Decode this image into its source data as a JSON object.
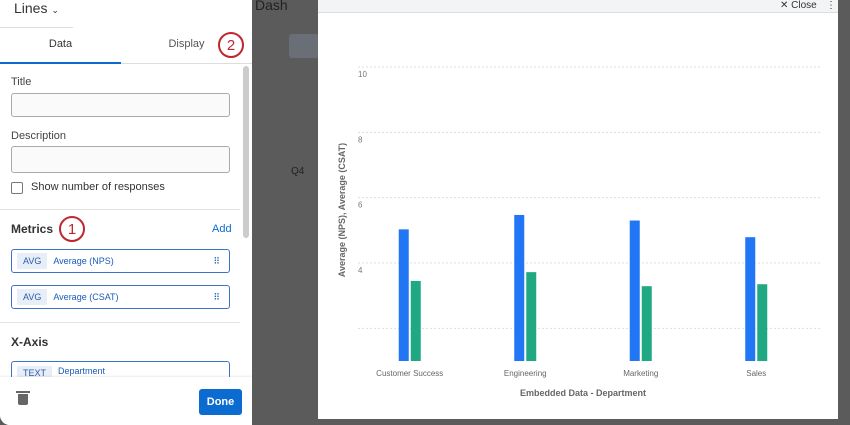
{
  "background": {
    "dashboard_title": "Dash",
    "row_label": "Q4"
  },
  "panel": {
    "widget_type": "Lines",
    "tabs": [
      {
        "label": "Data",
        "active": true
      },
      {
        "label": "Display",
        "active": false
      }
    ],
    "title_label": "Title",
    "title_value": "",
    "description_label": "Description",
    "description_value": "",
    "show_responses_label": "Show number of responses",
    "show_responses_checked": false,
    "metrics_label": "Metrics",
    "add_label": "Add",
    "metrics": [
      {
        "tag": "AVG",
        "name": "Average (NPS)"
      },
      {
        "tag": "AVG",
        "name": "Average (CSAT)"
      }
    ],
    "xaxis_label": "X-Axis",
    "xaxis_field": {
      "tag": "TEXT",
      "name": "Department"
    },
    "done_label": "Done",
    "annotations": [
      "1",
      "2"
    ]
  },
  "modal": {
    "close_label": "Close"
  },
  "colors": {
    "nps": "#2176f5",
    "csat": "#1fa882",
    "accent": "#0b6bd1",
    "annotation": "#c0262d"
  },
  "chart_data": {
    "type": "bar",
    "categories": [
      "Customer Success",
      "Engineering",
      "Marketing",
      "Sales"
    ],
    "series": [
      {
        "name": "Average (NPS)",
        "values": [
          5.03,
          5.47,
          5.3,
          4.79
        ]
      },
      {
        "name": "Average (CSAT)",
        "values": [
          3.45,
          3.72,
          3.29,
          3.35
        ]
      }
    ],
    "xlabel": "Embedded Data - Department",
    "ylabel": "Average (NPS), Average (CSAT)",
    "yticks": [
      "10",
      "8",
      "6",
      "4",
      ""
    ],
    "ylim": [
      1,
      10
    ],
    "grid": true
  }
}
